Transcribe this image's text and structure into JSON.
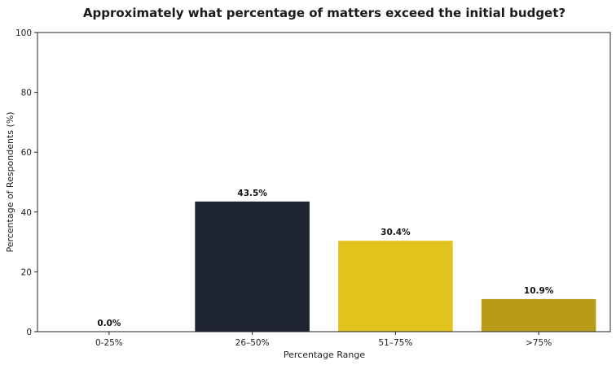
{
  "chart_data": {
    "type": "bar",
    "title": "Approximately what percentage of matters exceed the initial budget?",
    "xlabel": "Percentage Range",
    "ylabel": "Percentage of Respondents (%)",
    "categories": [
      "0-25%",
      "26–50%",
      "51–75%",
      ">75%"
    ],
    "values": [
      0.0,
      43.5,
      30.4,
      10.9
    ],
    "data_labels": [
      "0.0%",
      "43.5%",
      "30.4%",
      "10.9%"
    ],
    "colors": [
      "#1f2433",
      "#1f2433",
      "#e2c21d",
      "#b89c17"
    ],
    "ylim": [
      0,
      100
    ],
    "yticks": [
      0,
      20,
      40,
      60,
      80,
      100
    ],
    "grid": false,
    "legend": "none"
  }
}
